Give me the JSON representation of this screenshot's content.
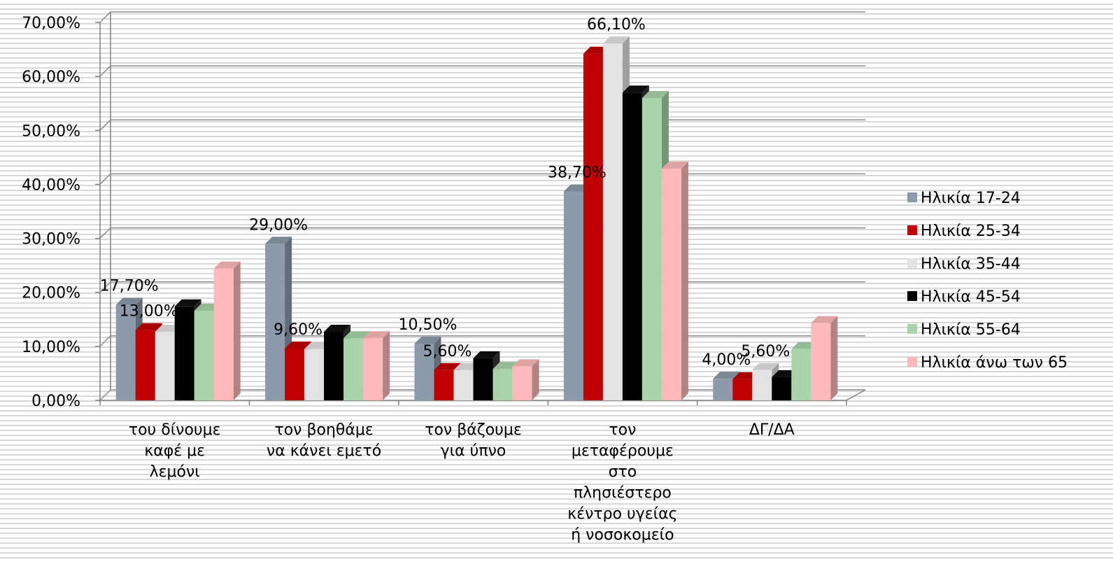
{
  "chart_data": {
    "type": "bar3d",
    "categories": [
      "του δίνουμε\nκαφέ με\nλεμόνι",
      "τον βοηθάμε\nνα κάνει εμετό",
      "τον βάζουμε\nγια ύπνο",
      "τον\nμεταφέρουμε\nστο\nπλησιέστερο\nκέντρο υγείας\nή νοσοκομείο",
      "ΔΓ/ΔΑ"
    ],
    "series": [
      {
        "name": "Ηλικία 17-24",
        "color": "#8c9aab",
        "values": [
          17.7,
          29.0,
          10.5,
          38.7,
          4.0
        ],
        "value_labels": [
          "17,70%",
          "29,00%",
          "10,50%",
          "38,70%",
          "4,00%"
        ]
      },
      {
        "name": "Ηλικία 25-34",
        "color": "#c00000",
        "values": [
          13.0,
          9.6,
          5.6,
          64.2,
          3.9
        ],
        "value_labels": [
          "13,00%",
          "9,60%",
          "5,60%",
          null,
          null
        ]
      },
      {
        "name": "Ηλικία 35-44",
        "color": "#e3e3e3",
        "values": [
          12.7,
          9.5,
          5.6,
          66.1,
          5.6
        ],
        "value_labels": [
          null,
          null,
          null,
          "66,10%",
          "5,60%"
        ]
      },
      {
        "name": "Ηλικία 45-54",
        "color": "#000000",
        "values": [
          17.4,
          12.7,
          7.8,
          57.0,
          4.3
        ]
      },
      {
        "name": "Ηλικία 55-64",
        "color": "#a9d4a9",
        "values": [
          16.6,
          11.5,
          5.8,
          56.0,
          9.5
        ]
      },
      {
        "name": "Ηλικία άνω των 65",
        "color": "#ffb9b9",
        "values": [
          24.4,
          11.5,
          6.3,
          42.9,
          14.3
        ]
      }
    ],
    "ylim": [
      0,
      70
    ],
    "yticks": [
      {
        "value": 0,
        "label": "0,00%"
      },
      {
        "value": 10,
        "label": "10,00%"
      },
      {
        "value": 20,
        "label": "20,00%"
      },
      {
        "value": 30,
        "label": "30,00%"
      },
      {
        "value": 40,
        "label": "40,00%"
      },
      {
        "value": 50,
        "label": "50,00%"
      },
      {
        "value": 60,
        "label": "60,00%"
      },
      {
        "value": 70,
        "label": "70,00%"
      }
    ],
    "grid": true,
    "legend": "right"
  }
}
